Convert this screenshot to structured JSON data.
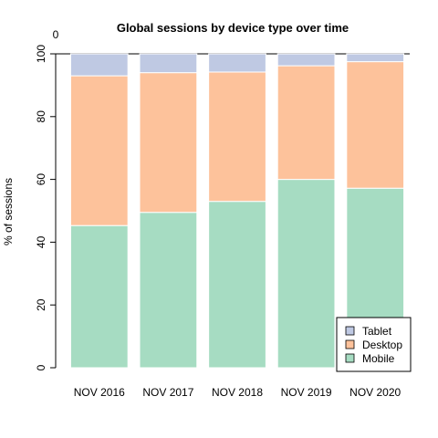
{
  "chart_data": {
    "type": "bar",
    "stacked": true,
    "title": "Global sessions by device type over time",
    "xlabel": "",
    "ylabel": "% of sessions",
    "ylim": [
      0,
      100
    ],
    "yticks": [
      0,
      20,
      40,
      60,
      80,
      100
    ],
    "top_annotation": "0",
    "categories": [
      "NOV 2016",
      "NOV 2017",
      "NOV 2018",
      "NOV 2019",
      "NOV 2020"
    ],
    "series": [
      {
        "name": "Mobile",
        "values": [
          45.3,
          49.5,
          53.0,
          60.0,
          57.2
        ],
        "color": "#a6dcc2"
      },
      {
        "name": "Desktop",
        "values": [
          47.7,
          44.5,
          41.2,
          36.2,
          40.3
        ],
        "color": "#fdc29b"
      },
      {
        "name": "Tablet",
        "values": [
          7.0,
          6.0,
          5.8,
          3.8,
          2.5
        ],
        "color": "#bfc9e3"
      }
    ],
    "legend": {
      "position": "bottom-right",
      "entries": [
        "Tablet",
        "Desktop",
        "Mobile"
      ]
    },
    "grid": false
  }
}
